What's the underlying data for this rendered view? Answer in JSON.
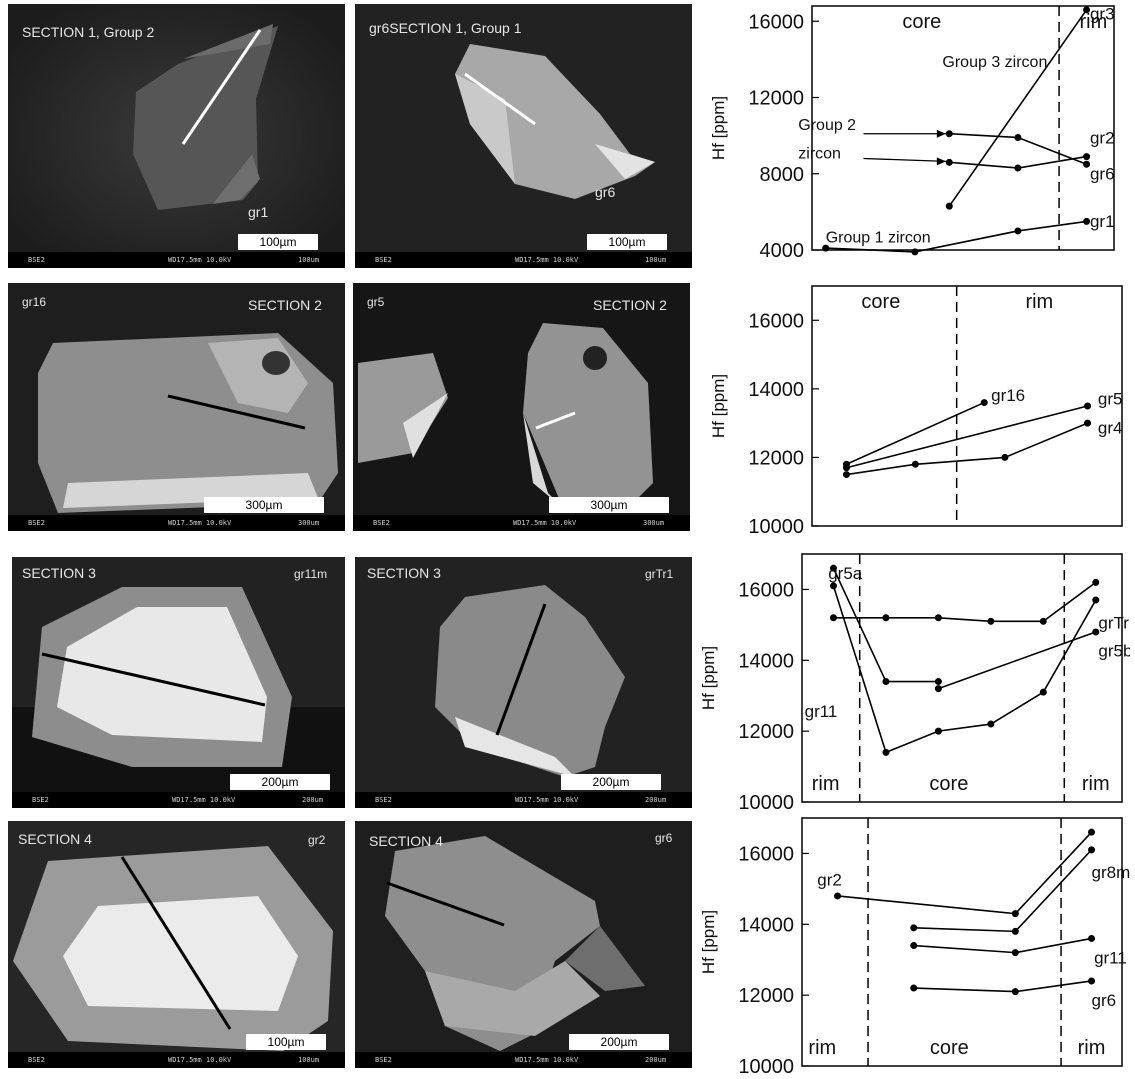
{
  "panels": [
    {
      "title": "SECTION 1, Group 2",
      "label": "gr1",
      "scale": "100µm",
      "bar": {
        "detector": "BSE2",
        "params": "WD17.5mm 10.0kV",
        "field": "100um"
      }
    },
    {
      "title": "gr6SECTION 1, Group 1",
      "label": "gr6",
      "scale": "100µm",
      "bar": {
        "detector": "BSE2",
        "params": "WD17.5mm 10.0kV",
        "field": "100um"
      }
    },
    {
      "title": "gr16",
      "title2": "SECTION 2",
      "scale": "300µm",
      "bar": {
        "detector": "BSE2",
        "params": "WD17.5mm 10.0kV",
        "field": "300um"
      }
    },
    {
      "title": "gr5",
      "title2": "SECTION 2",
      "scale": "300µm",
      "bar": {
        "detector": "BSE2",
        "params": "WD17.5mm 10.0kV",
        "field": "300um"
      }
    },
    {
      "title": "SECTION 3",
      "title2": "gr11m",
      "scale": "200µm",
      "bar": {
        "detector": "BSE2",
        "params": "WD17.5mm 10.0kV",
        "field": "200um"
      }
    },
    {
      "title": "SECTION 3",
      "title2": "grTr1",
      "scale": "200µm",
      "bar": {
        "detector": "BSE2",
        "params": "WD17.5mm 10.0kV",
        "field": "200um"
      }
    },
    {
      "title": "SECTION 4",
      "title2": "gr2",
      "scale": "100µm",
      "bar": {
        "detector": "BSE2",
        "params": "WD17.5mm 10.0kV",
        "field": "100um"
      }
    },
    {
      "title": "SECTION 4",
      "title2": "gr6",
      "scale": "200µm",
      "bar": {
        "detector": "BSE2",
        "params": "WD17.5mm 10.0kV",
        "field": "200um"
      }
    }
  ],
  "chart_data": [
    {
      "type": "line",
      "ylabel": "Hf [ppm]",
      "ylim": [
        4000,
        16800
      ],
      "yticks": [
        4000,
        8000,
        12000,
        16000
      ],
      "zones": [
        "core",
        "rim"
      ],
      "grid": false,
      "series": [
        {
          "name": "gr3",
          "points": [
            [
              2,
              6300
            ],
            [
              4,
              16600
            ]
          ]
        },
        {
          "name": "gr2",
          "points": [
            [
              2,
              10100
            ],
            [
              3,
              9900
            ],
            [
              4,
              8500
            ]
          ]
        },
        {
          "name": "gr6",
          "points": [
            [
              2,
              8600
            ],
            [
              3,
              8300
            ],
            [
              4,
              8900
            ]
          ]
        },
        {
          "name": "gr1",
          "points": [
            [
              0.2,
              4100
            ],
            [
              1.5,
              3900
            ],
            [
              3,
              5000
            ],
            [
              4,
              5500
            ]
          ]
        }
      ],
      "annotations": [
        "Group 3 zircon",
        "Group 2",
        "zircon",
        "Group 1 zircon"
      ]
    },
    {
      "type": "line",
      "ylabel": "Hf [ppm]",
      "ylim": [
        10000,
        17000
      ],
      "yticks": [
        10000,
        12000,
        14000,
        16000
      ],
      "zones": [
        "core",
        "rim"
      ],
      "grid": false,
      "series": [
        {
          "name": "gr16",
          "points": [
            [
              0.5,
              11800
            ],
            [
              2.5,
              13600
            ]
          ]
        },
        {
          "name": "gr5",
          "points": [
            [
              0.5,
              11700
            ],
            [
              4,
              13500
            ]
          ]
        },
        {
          "name": "gr4",
          "points": [
            [
              0.5,
              11500
            ],
            [
              1.5,
              11800
            ],
            [
              2.8,
              12000
            ],
            [
              4,
              13000
            ]
          ]
        }
      ]
    },
    {
      "type": "line",
      "ylabel": "Hf [ppm]",
      "ylim": [
        10000,
        17000
      ],
      "yticks": [
        10000,
        12000,
        14000,
        16000
      ],
      "zones": [
        "rim",
        "core",
        "rim"
      ],
      "grid": false,
      "series": [
        {
          "name": "gr5a",
          "points": [
            [
              0,
              16600
            ],
            [
              1,
              13400
            ],
            [
              2,
              13400
            ]
          ]
        },
        {
          "name": "grTr1",
          "points": [
            [
              0,
              15200
            ],
            [
              1,
              15200
            ],
            [
              2,
              15200
            ],
            [
              3,
              15100
            ],
            [
              4,
              15100
            ],
            [
              5,
              16200
            ]
          ]
        },
        {
          "name": "gr5b",
          "points": [
            [
              2,
              13200
            ],
            [
              5,
              14800
            ]
          ]
        },
        {
          "name": "gr11",
          "points": [
            [
              0,
              16100
            ],
            [
              1,
              11400
            ],
            [
              2,
              12000
            ],
            [
              3,
              12200
            ],
            [
              4,
              13100
            ],
            [
              5,
              15700
            ]
          ]
        }
      ]
    },
    {
      "type": "line",
      "ylabel": "Hf [ppm]",
      "ylim": [
        10000,
        17000
      ],
      "yticks": [
        10000,
        12000,
        14000,
        16000
      ],
      "zones": [
        "rim",
        "core",
        "rim"
      ],
      "grid": false,
      "series": [
        {
          "name": "gr2",
          "points": [
            [
              0,
              14800
            ],
            [
              3.5,
              14300
            ],
            [
              5,
              16600
            ]
          ]
        },
        {
          "name": "gr8m",
          "points": [
            [
              1.5,
              13900
            ],
            [
              3.5,
              13800
            ],
            [
              5,
              16100
            ]
          ]
        },
        {
          "name": "gr11",
          "points": [
            [
              1.5,
              13400
            ],
            [
              3.5,
              13200
            ],
            [
              5,
              13600
            ]
          ]
        },
        {
          "name": "gr6",
          "points": [
            [
              1.5,
              12200
            ],
            [
              3.5,
              12100
            ],
            [
              5,
              12400
            ]
          ]
        }
      ]
    }
  ]
}
